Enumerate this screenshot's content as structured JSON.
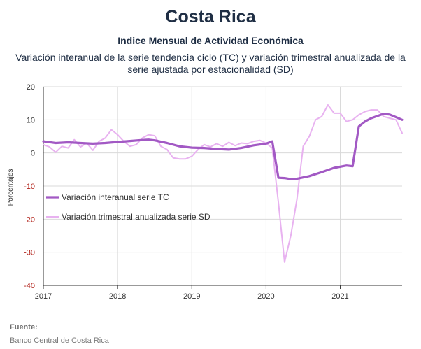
{
  "header": {
    "title": "Costa Rica",
    "subtitle": "Indice Mensual de  Actividad Económica",
    "description": "Variación interanual de la serie tendencia ciclo (TC) y variación trimestral anualizada de la serie ajustada por estacionalidad (SD)"
  },
  "footer": {
    "source_label": "Fuente:",
    "source_text": "Banco Central de Costa Rica"
  },
  "colors": {
    "tc_line": "#a259c4",
    "sd_line": "#e8b2f0",
    "axis_text": "#333333",
    "negative_tick": "#b3261e"
  },
  "chart_data": {
    "type": "line",
    "title": "",
    "xlabel": "",
    "ylabel": "Porcentajes",
    "ylim": [
      -40,
      20
    ],
    "yticks": [
      "20",
      "10",
      "0",
      "-10",
      "-20",
      "-30",
      "-40"
    ],
    "xticks": [
      "2017",
      "2018",
      "2019",
      "2020",
      "2021"
    ],
    "xlim": [
      "2017-01",
      "2021-11"
    ],
    "grid": true,
    "legend_position": "center-left",
    "series": [
      {
        "name": "Variación interanual serie TC",
        "x": [
          "2017-01",
          "2017-03",
          "2017-05",
          "2017-07",
          "2017-09",
          "2017-11",
          "2018-01",
          "2018-03",
          "2018-05",
          "2018-06",
          "2018-07",
          "2018-09",
          "2018-11",
          "2019-01",
          "2019-03",
          "2019-05",
          "2019-07",
          "2019-09",
          "2019-11",
          "2020-01",
          "2020-02",
          "2020-03",
          "2020-04",
          "2020-05",
          "2020-06",
          "2020-08",
          "2020-10",
          "2020-12",
          "2021-02",
          "2021-03",
          "2021-04",
          "2021-05",
          "2021-06",
          "2021-08",
          "2021-09",
          "2021-10",
          "2021-11"
        ],
        "values": [
          3.5,
          3.0,
          3.2,
          3.0,
          2.8,
          3.0,
          3.3,
          3.6,
          3.9,
          4.0,
          3.8,
          3.0,
          2.0,
          1.6,
          1.5,
          1.2,
          1.0,
          1.5,
          2.3,
          2.8,
          3.5,
          -7.5,
          -7.6,
          -7.9,
          -7.8,
          -7.0,
          -5.8,
          -4.5,
          -3.8,
          -4.0,
          8.0,
          9.5,
          10.5,
          11.8,
          11.6,
          10.8,
          10.0
        ]
      },
      {
        "name": "Variación trimestral anualizada serie SD",
        "x": [
          "2017-01",
          "2017-02",
          "2017-03",
          "2017-04",
          "2017-05",
          "2017-06",
          "2017-07",
          "2017-08",
          "2017-09",
          "2017-10",
          "2017-11",
          "2017-12",
          "2018-01",
          "2018-02",
          "2018-03",
          "2018-04",
          "2018-05",
          "2018-06",
          "2018-07",
          "2018-08",
          "2018-09",
          "2018-10",
          "2018-11",
          "2018-12",
          "2019-01",
          "2019-02",
          "2019-03",
          "2019-04",
          "2019-05",
          "2019-06",
          "2019-07",
          "2019-08",
          "2019-09",
          "2019-10",
          "2019-11",
          "2019-12",
          "2020-01",
          "2020-02",
          "2020-03",
          "2020-04",
          "2020-05",
          "2020-06",
          "2020-07",
          "2020-08",
          "2020-09",
          "2020-10",
          "2020-11",
          "2020-12",
          "2021-01",
          "2021-02",
          "2021-03",
          "2021-04",
          "2021-05",
          "2021-06",
          "2021-07",
          "2021-08",
          "2021-09",
          "2021-10",
          "2021-11"
        ],
        "values": [
          2.5,
          1.8,
          0.2,
          2.0,
          1.5,
          4.0,
          1.8,
          3.0,
          0.8,
          3.5,
          4.5,
          7.0,
          5.5,
          3.5,
          2.0,
          2.5,
          4.5,
          5.5,
          5.2,
          2.0,
          1.0,
          -1.5,
          -1.8,
          -1.8,
          -1.0,
          1.0,
          2.5,
          1.8,
          2.8,
          2.0,
          3.2,
          2.2,
          3.0,
          2.8,
          3.5,
          3.8,
          3.0,
          1.5,
          -15.0,
          -33.0,
          -25.0,
          -14.0,
          2.0,
          5.0,
          10.0,
          11.0,
          14.5,
          12.0,
          12.0,
          9.5,
          10.0,
          11.5,
          12.5,
          13.0,
          13.0,
          11.0,
          10.5,
          10.0,
          6.0
        ]
      }
    ]
  }
}
